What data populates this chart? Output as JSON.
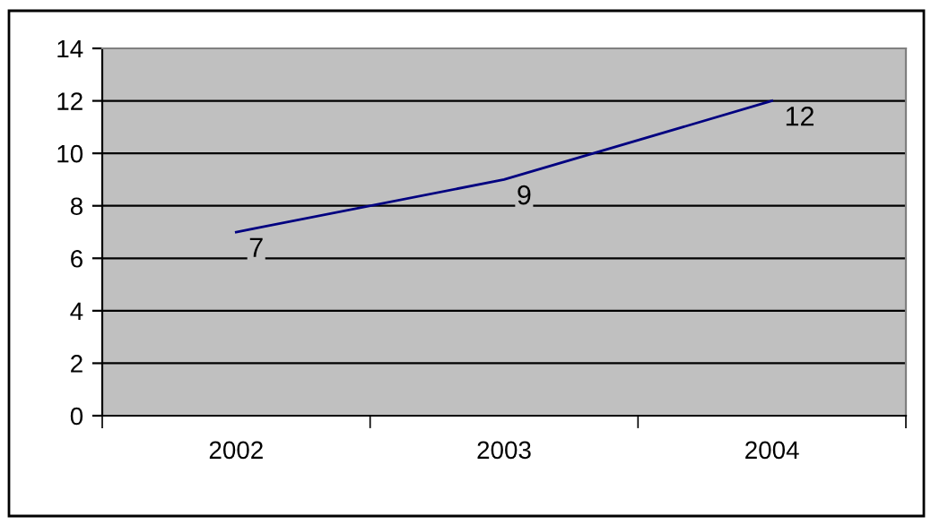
{
  "chart_data": {
    "type": "line",
    "categories": [
      "2002",
      "2003",
      "2004"
    ],
    "series": [
      {
        "color": "#000080",
        "values": [
          7,
          9,
          12
        ]
      }
    ],
    "ylim": [
      0,
      14
    ],
    "yticks": [
      0,
      2,
      4,
      6,
      8,
      10,
      12,
      14
    ],
    "grid": "y",
    "data_labels": true,
    "marker": "none",
    "line_style": "solid"
  }
}
